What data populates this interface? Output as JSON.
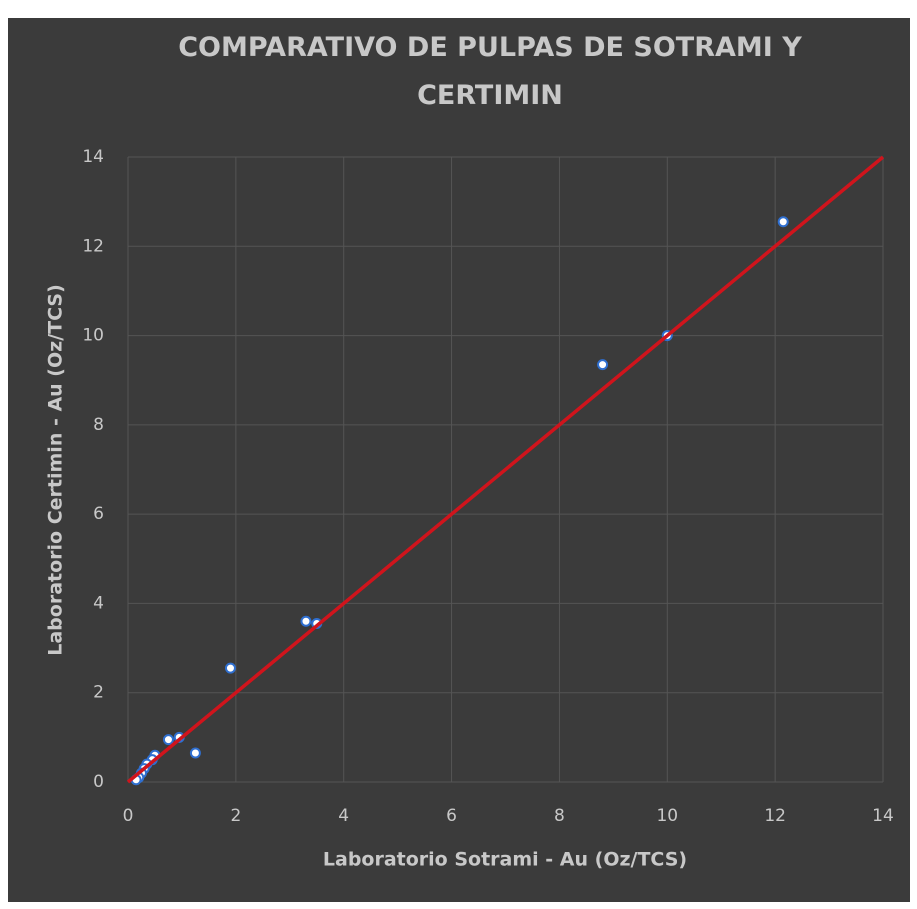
{
  "chart_data": {
    "type": "scatter",
    "title": "COMPARATIVO DE PULPAS DE SOTRAMI Y CERTIMIN",
    "x_label": "Laboratorio Sotrami  - Au (Oz/TCS)",
    "y_label": "Laboratorio Certimin  - Au (Oz/TCS)",
    "xlim": [
      0,
      14
    ],
    "ylim": [
      0,
      14
    ],
    "xticks": [
      0,
      2,
      4,
      6,
      8,
      10,
      12,
      14
    ],
    "yticks": [
      0,
      2,
      4,
      6,
      8,
      10,
      12,
      14
    ],
    "grid": true,
    "series": [
      {
        "color": "#ffffff",
        "edge_color": "#2f6fd0",
        "x": [
          12.15,
          10.0,
          8.8,
          3.3,
          3.5,
          1.9,
          1.25,
          0.95,
          0.75,
          0.5,
          0.45,
          0.35,
          0.3,
          0.25,
          0.2,
          0.15
        ],
        "values": [
          12.55,
          10.0,
          9.35,
          3.6,
          3.55,
          2.55,
          0.65,
          1.0,
          0.95,
          0.6,
          0.5,
          0.4,
          0.3,
          0.2,
          0.1,
          0.05
        ]
      },
      {
        "type": "line",
        "color": "#d0141c",
        "x": [
          0,
          14
        ],
        "values": [
          0,
          14
        ]
      }
    ]
  }
}
